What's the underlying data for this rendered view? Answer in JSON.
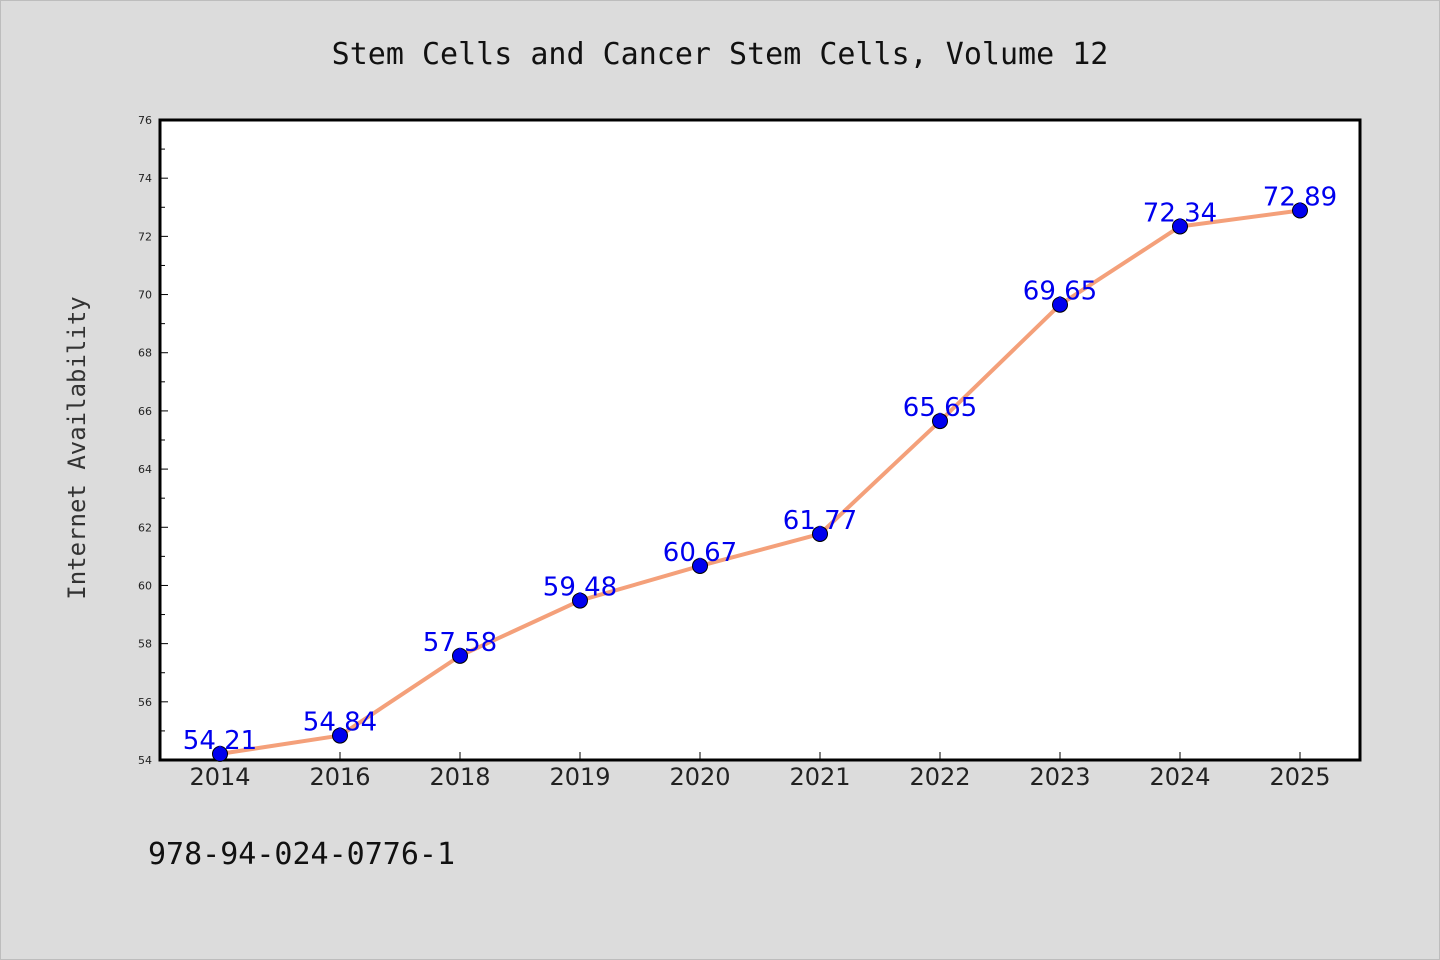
{
  "chart_data": {
    "type": "line",
    "title": "Stem Cells and Cancer Stem Cells, Volume 12",
    "xlabel": "",
    "ylabel": "Internet Availability",
    "categories": [
      "2014",
      "2016",
      "2018",
      "2019",
      "2020",
      "2021",
      "2022",
      "2023",
      "2024",
      "2025"
    ],
    "values": [
      54.21,
      54.84,
      57.58,
      59.48,
      60.67,
      61.77,
      65.65,
      69.65,
      72.34,
      72.89
    ],
    "ylim": [
      54,
      76
    ],
    "yticks": [
      54,
      56,
      58,
      60,
      62,
      64,
      66,
      68,
      70,
      72,
      74,
      76
    ],
    "grid": false,
    "line_color": "#f4a07a",
    "marker_color": "#0000ee",
    "label_color": "#0000ee"
  },
  "footer": {
    "isbn": "978-94-024-0776-1"
  }
}
